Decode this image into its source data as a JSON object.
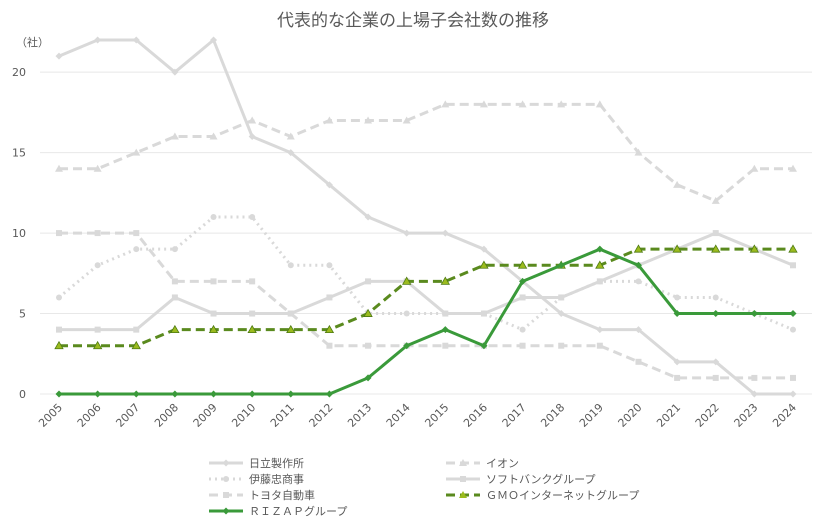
{
  "chart_data": {
    "type": "line",
    "title": "代表的な企業の上場子会社数の推移",
    "ylabel": "（社）",
    "xlabel": "",
    "ylim": [
      0,
      22
    ],
    "yticks": [
      0,
      5,
      10,
      15,
      20
    ],
    "x": [
      "2005",
      "2006",
      "2007",
      "2008",
      "2009",
      "2010",
      "2011",
      "2012",
      "2013",
      "2014",
      "2015",
      "2016",
      "2017",
      "2018",
      "2019",
      "2020",
      "2021",
      "2022",
      "2023",
      "2024"
    ],
    "series": [
      {
        "name": "日立製作所",
        "color": "#d9d9d9",
        "style": "solid",
        "width": 3,
        "marker": "diamond",
        "values": [
          21,
          22,
          22,
          20,
          22,
          16,
          15,
          13,
          11,
          10,
          10,
          9,
          7,
          5,
          4,
          4,
          2,
          2,
          0,
          0
        ]
      },
      {
        "name": "イオン",
        "color": "#d9d9d9",
        "style": "dashed",
        "width": 3,
        "marker": "triangle",
        "values": [
          14,
          14,
          15,
          16,
          16,
          17,
          16,
          17,
          17,
          17,
          18,
          18,
          18,
          18,
          18,
          15,
          13,
          12,
          14,
          14
        ]
      },
      {
        "name": "伊藤忠商事",
        "color": "#d9d9d9",
        "style": "dotted",
        "width": 3,
        "marker": "circle",
        "values": [
          6,
          8,
          9,
          9,
          11,
          11,
          8,
          8,
          5,
          5,
          5,
          5,
          4,
          6,
          7,
          7,
          6,
          6,
          5,
          4
        ]
      },
      {
        "name": "ソフトバンクグループ",
        "color": "#d9d9d9",
        "style": "solid",
        "width": 3,
        "marker": "square",
        "values": [
          4,
          4,
          4,
          6,
          5,
          5,
          5,
          6,
          7,
          7,
          5,
          5,
          6,
          6,
          7,
          8,
          9,
          10,
          9,
          8
        ]
      },
      {
        "name": "トヨタ自動車",
        "color": "#d9d9d9",
        "style": "dashed",
        "width": 3,
        "marker": "square",
        "values": [
          10,
          10,
          10,
          7,
          7,
          7,
          5,
          3,
          3,
          3,
          3,
          3,
          3,
          3,
          3,
          2,
          1,
          1,
          1,
          1
        ]
      },
      {
        "name": "ＧＭＯインターネットグループ",
        "color": "#5a8a1e",
        "style": "dashed",
        "width": 3,
        "marker": "triangle",
        "values": [
          3,
          3,
          3,
          4,
          4,
          4,
          4,
          4,
          5,
          7,
          7,
          8,
          8,
          8,
          8,
          9,
          9,
          9,
          9,
          9
        ]
      },
      {
        "name": "ＲＩＺＡＰグループ",
        "color": "#3a9a3a",
        "style": "solid",
        "width": 3,
        "marker": "diamond",
        "values": [
          0,
          0,
          0,
          0,
          0,
          0,
          0,
          0,
          1,
          3,
          4,
          3,
          7,
          8,
          9,
          8,
          5,
          5,
          5,
          5
        ]
      }
    ],
    "legend": "bottom"
  }
}
